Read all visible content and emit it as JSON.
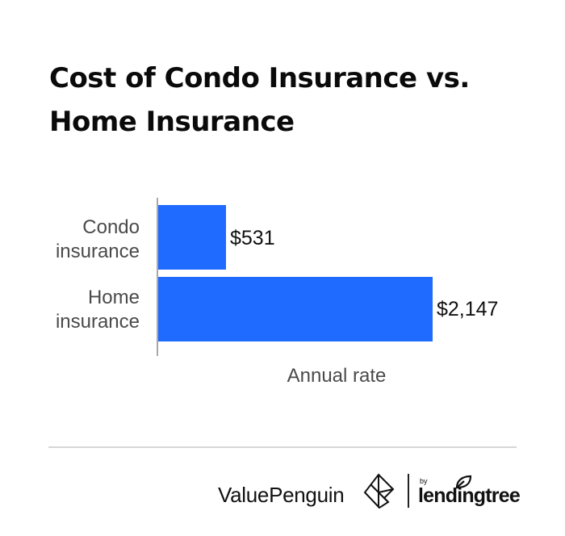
{
  "title": {
    "line1": "Cost of Condo Insurance vs.",
    "line2": "Home Insurance"
  },
  "colors": {
    "bar": "#1f6bff",
    "axis": "#a8a8a8",
    "divider": "#d6d6d6",
    "text": "#111111",
    "label": "#4a4a4a"
  },
  "chart_data": {
    "type": "bar",
    "orientation": "horizontal",
    "title": "Cost of Condo Insurance vs. Home Insurance",
    "categories": [
      "Condo insurance",
      "Home insurance"
    ],
    "values": [
      531,
      2147
    ],
    "value_labels": [
      "$531",
      "$2,147"
    ],
    "xlabel": "Annual rate",
    "ylabel": "",
    "xlim": [
      0,
      2147
    ],
    "grid": false,
    "legend": null
  },
  "bars": [
    {
      "label_line1": "Condo",
      "label_line2": "insurance",
      "value_label": "$531"
    },
    {
      "label_line1": "Home",
      "label_line2": "insurance",
      "value_label": "$2,147"
    }
  ],
  "footer": {
    "brand": "ValuePenguin",
    "by": "by",
    "partner": "lendingtree",
    "brand_icon": "valuepenguin-diamond-logo-icon",
    "partner_icon": "lendingtree-leaf-icon"
  }
}
